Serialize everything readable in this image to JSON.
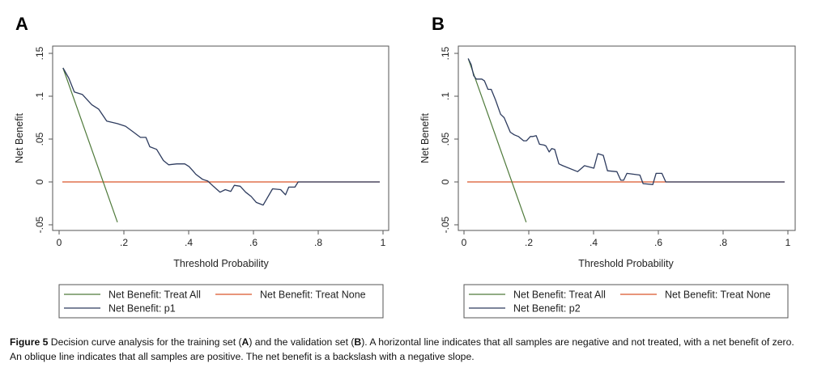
{
  "caption": {
    "label": "Figure 5",
    "parts": [
      {
        "text": " Decision curve analysis for the training set (",
        "bold": false
      },
      {
        "text": "A",
        "bold": true
      },
      {
        "text": ") and the validation set (",
        "bold": false
      },
      {
        "text": "B",
        "bold": true
      },
      {
        "text": "). A horizontal line indicates that all samples are negative and not treated, with a net benefit of zero. An oblique line indicates that all samples are positive. The net benefit is a backslash with a negative slope.",
        "bold": false
      }
    ]
  },
  "colors": {
    "treat_all": "#4f7a3b",
    "treat_none": "#d9562a",
    "model": "#2d3b5e",
    "axis": "#555555"
  },
  "chart_data": [
    {
      "panel": "A",
      "type": "line",
      "title": "",
      "xlabel": "Threshold Probability",
      "ylabel": "Net Benefit",
      "xlim": [
        0,
        1
      ],
      "ylim": [
        -0.05,
        0.15
      ],
      "xticks": [
        0,
        0.2,
        0.4,
        0.6,
        0.8,
        1
      ],
      "xtick_labels": [
        "0",
        ".2",
        ".4",
        ".6",
        ".8",
        "1"
      ],
      "yticks": [
        -0.05,
        0,
        0.05,
        0.1,
        0.15
      ],
      "ytick_labels": [
        "-.05",
        "0",
        ".05",
        ".1",
        ".15"
      ],
      "grid": false,
      "legend_position": "bottom",
      "series": [
        {
          "name": "Net Benefit: Treat All",
          "key": "treat_all",
          "x": [
            0.012,
            0.18
          ],
          "y": [
            0.133,
            -0.047
          ]
        },
        {
          "name": "Net Benefit: Treat None",
          "key": "treat_none",
          "x": [
            0.01,
            0.99
          ],
          "y": [
            0,
            0
          ]
        },
        {
          "name": "Net Benefit: p1",
          "key": "model",
          "x": [
            0.012,
            0.03,
            0.047,
            0.072,
            0.101,
            0.122,
            0.147,
            0.18,
            0.205,
            0.23,
            0.251,
            0.268,
            0.28,
            0.301,
            0.322,
            0.338,
            0.363,
            0.388,
            0.401,
            0.413,
            0.422,
            0.443,
            0.459,
            0.476,
            0.497,
            0.513,
            0.53,
            0.541,
            0.559,
            0.576,
            0.593,
            0.609,
            0.63,
            0.659,
            0.684,
            0.699,
            0.709,
            0.728,
            0.738,
            0.99
          ],
          "y": [
            0.133,
            0.121,
            0.105,
            0.102,
            0.09,
            0.085,
            0.071,
            0.068,
            0.065,
            0.058,
            0.052,
            0.052,
            0.041,
            0.038,
            0.025,
            0.02,
            0.021,
            0.021,
            0.018,
            0.013,
            0.009,
            0.003,
            0.001,
            -0.005,
            -0.012,
            -0.009,
            -0.011,
            -0.004,
            -0.005,
            -0.012,
            -0.017,
            -0.024,
            -0.027,
            -0.008,
            -0.009,
            -0.015,
            -0.006,
            -0.006,
            0.0,
            0.0
          ]
        }
      ]
    },
    {
      "panel": "B",
      "type": "line",
      "title": "",
      "xlabel": "Threshold Probability",
      "ylabel": "Net Benefit",
      "xlim": [
        0,
        1
      ],
      "ylim": [
        -0.05,
        0.15
      ],
      "xticks": [
        0,
        0.2,
        0.4,
        0.6,
        0.8,
        1
      ],
      "xtick_labels": [
        "0",
        ".2",
        ".4",
        ".6",
        ".8",
        "1"
      ],
      "yticks": [
        -0.05,
        0,
        0.05,
        0.1,
        0.15
      ],
      "ytick_labels": [
        "-.05",
        "0",
        ".05",
        ".1",
        ".15"
      ],
      "grid": false,
      "legend_position": "bottom",
      "series": [
        {
          "name": "Net Benefit: Treat All",
          "key": "treat_all",
          "x": [
            0.013,
            0.192
          ],
          "y": [
            0.144,
            -0.047
          ]
        },
        {
          "name": "Net Benefit: Treat None",
          "key": "treat_none",
          "x": [
            0.01,
            0.99
          ],
          "y": [
            0,
            0
          ]
        },
        {
          "name": "Net Benefit: p2",
          "key": "model",
          "x": [
            0.013,
            0.022,
            0.03,
            0.038,
            0.055,
            0.063,
            0.074,
            0.084,
            0.097,
            0.113,
            0.124,
            0.143,
            0.155,
            0.168,
            0.184,
            0.193,
            0.205,
            0.213,
            0.223,
            0.233,
            0.247,
            0.253,
            0.263,
            0.271,
            0.28,
            0.293,
            0.305,
            0.351,
            0.372,
            0.401,
            0.413,
            0.43,
            0.443,
            0.472,
            0.484,
            0.493,
            0.503,
            0.543,
            0.553,
            0.583,
            0.593,
            0.611,
            0.623,
            0.99
          ],
          "y": [
            0.144,
            0.137,
            0.124,
            0.12,
            0.12,
            0.118,
            0.108,
            0.108,
            0.096,
            0.079,
            0.075,
            0.058,
            0.055,
            0.053,
            0.048,
            0.048,
            0.053,
            0.053,
            0.054,
            0.044,
            0.043,
            0.042,
            0.035,
            0.039,
            0.038,
            0.021,
            0.019,
            0.012,
            0.019,
            0.016,
            0.033,
            0.031,
            0.013,
            0.012,
            0.002,
            0.002,
            0.01,
            0.008,
            -0.002,
            -0.003,
            0.01,
            0.01,
            0.0,
            0.0
          ]
        }
      ]
    }
  ]
}
